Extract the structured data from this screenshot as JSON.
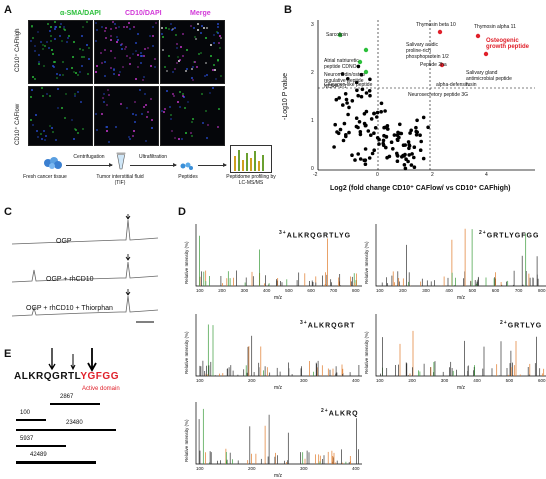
{
  "panels": {
    "A": {
      "letter": "A",
      "headers": {
        "sma": "α-SMA/DAPI",
        "cd10": "CD10/DAPI",
        "merge": "Merge"
      },
      "rows": [
        "CD10⁺ CAFhigh",
        "CD10⁺ CAFlow"
      ],
      "flow": {
        "steps": [
          "Fresh cancer tissue",
          "Tumor interstitial fluid (TIF)",
          "Peptides",
          "Peptidome profiling by LC-MS/MS"
        ],
        "arrows": [
          "Centrifugation",
          "Ultrafiltration"
        ]
      }
    },
    "B": {
      "letter": "B",
      "ylabel": "-Log10 P value",
      "xlabel": "Log2 (fold change CD10⁺ CAFlow/ vs CD10⁺ CAFhigh)",
      "xticks": [
        "-2",
        "0",
        "2",
        "4"
      ],
      "yticks": [
        "0",
        "1",
        "2",
        "3"
      ],
      "left_labels": [
        "Sarcolipin",
        "Atrial natriuretic peptide CDNO",
        "Neuromedin/osteo regulative peptide NCRP 2-1",
        "Glucagon-like peptide"
      ],
      "right_labels": [
        "Thymosin beta 10",
        "Thymosin alpha 11",
        "Salivary acidic proline-rich phosphoprotein 1/2",
        "Peptide 2ha",
        "alpha-defensin",
        "Neurosecretory peptide 3G",
        "Salivary gland antimicrobial peptide fusin"
      ],
      "highlight_label": "Osteogenic growth peptide"
    },
    "C": {
      "letter": "C",
      "traces": [
        "OGP",
        "OGP + rhCD10",
        "OGP + rhCD10 + Thiorphan"
      ]
    },
    "D": {
      "letter": "D",
      "ylabel": "Relative Intensity (%)",
      "xlabel": "m/z",
      "spectra": [
        {
          "charge": "3+",
          "seq": "ALKRQGRTLYG",
          "xticks": [
            "100",
            "200",
            "300",
            "400",
            "500",
            "600",
            "700",
            "800"
          ]
        },
        {
          "charge": "2+",
          "seq": "GRTLYGFGG",
          "xticks": [
            "100",
            "200",
            "300",
            "400",
            "500",
            "600",
            "700",
            "800"
          ]
        },
        {
          "charge": "3+",
          "seq": "ALKRQGRT",
          "xticks": [
            "100",
            "200",
            "300",
            "400"
          ]
        },
        {
          "charge": "2+",
          "seq": "GRTLYG",
          "xticks": [
            "100",
            "200",
            "300",
            "400",
            "500",
            "600"
          ]
        },
        {
          "charge": "2+",
          "seq": "ALKRQ",
          "xticks": [
            "100",
            "200",
            "300",
            "400"
          ]
        }
      ]
    },
    "E": {
      "letter": "E",
      "seq_black": "ALKRQGRTL",
      "seq_red": "YGFGG",
      "active_label": "Active domain",
      "bars": [
        "2867",
        "100",
        "23480",
        "5937",
        "42489"
      ]
    }
  },
  "colors": {
    "green": "#2bbf3a",
    "magenta": "#d23ad8",
    "red": "#e0202a",
    "orange": "#e07a2a",
    "ms_green": "#3a9a3a"
  }
}
